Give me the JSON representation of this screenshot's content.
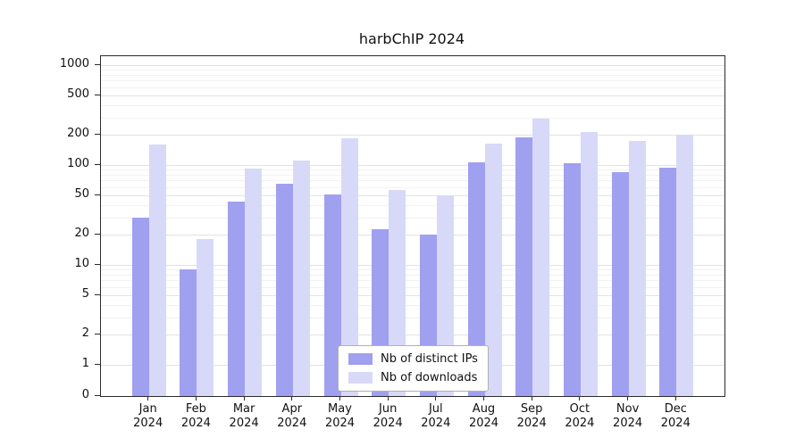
{
  "chart_data": {
    "type": "bar",
    "title": "harbChIP 2024",
    "categories": [
      "Jan 2024",
      "Feb 2024",
      "Mar 2024",
      "Apr 2024",
      "May 2024",
      "Jun 2024",
      "Jul 2024",
      "Aug 2024",
      "Sep 2024",
      "Oct 2024",
      "Nov 2024",
      "Dec 2024"
    ],
    "series": [
      {
        "name": "Nb of distinct IPs",
        "color": "#a0a0f0",
        "values": [
          30,
          9,
          43,
          65,
          51,
          23,
          20,
          107,
          190,
          105,
          85,
          95
        ]
      },
      {
        "name": "Nb of downloads",
        "color": "#d8d8f8",
        "values": [
          160,
          18,
          92,
          110,
          185,
          56,
          50,
          165,
          290,
          215,
          175,
          200
        ]
      }
    ],
    "yscale": "symlog",
    "ylim": [
      0,
      1000
    ],
    "yticks": [
      0,
      1,
      2,
      5,
      10,
      20,
      50,
      100,
      200,
      500,
      1000
    ],
    "yticks_minor": [
      3,
      4,
      6,
      7,
      8,
      9,
      30,
      40,
      60,
      70,
      80,
      90,
      300,
      400,
      600,
      700,
      800,
      900
    ],
    "grid": true,
    "legend_position": "inside-bottom-center",
    "xlabel": "",
    "ylabel": ""
  }
}
